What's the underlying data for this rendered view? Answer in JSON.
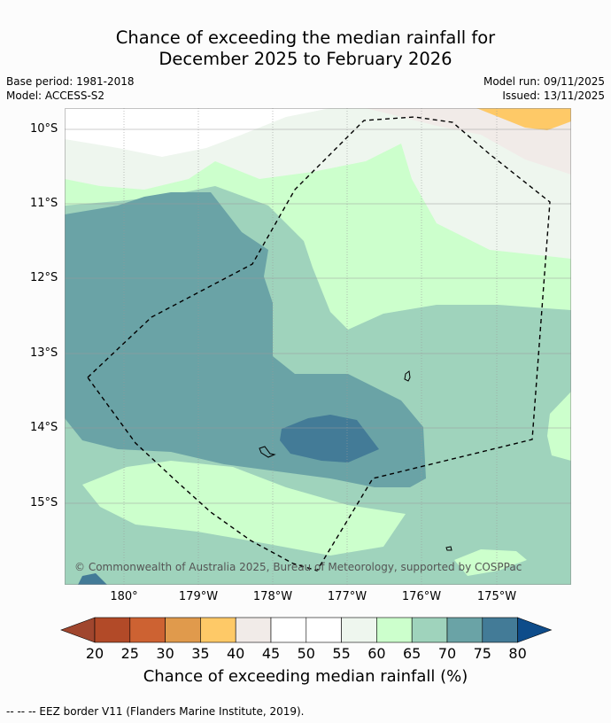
{
  "title": {
    "line1": "Chance of exceeding the median rainfall for",
    "line2": "December 2025 to February 2026"
  },
  "meta": {
    "base_period": "Base period: 1981-2018",
    "model": "Model: ACCESS-S2",
    "model_run": "Model run: 09/11/2025",
    "issued": "Issued: 13/11/2025"
  },
  "map": {
    "lat_labels": [
      "10°S",
      "11°S",
      "12°S",
      "13°S",
      "14°S",
      "15°S"
    ],
    "lon_labels": [
      "180°",
      "179°W",
      "178°W",
      "177°W",
      "176°W",
      "175°W"
    ],
    "copyright": "© Commonwealth of Australia 2025, Bureau of Meteorology, supported by COSPPac",
    "icons": [
      "island-outline-icon",
      "eez-border-icon"
    ]
  },
  "colorbar": {
    "ticks": [
      "20",
      "25",
      "30",
      "35",
      "40",
      "45",
      "50",
      "55",
      "60",
      "65",
      "70",
      "75",
      "80"
    ],
    "colors": [
      "#a0462e",
      "#b24a28",
      "#cd6232",
      "#e09a4c",
      "#fec967",
      "#f1ebe8",
      "#ffffff",
      "#ffffff",
      "#eef6ee",
      "#ccffcc",
      "#9fd3bc",
      "#6aa3a6",
      "#437b97",
      "#0e4c8a"
    ],
    "label": "Chance of exceeding median rainfall (%)"
  },
  "footer": {
    "legend_line": "--  --  -- EEZ border V11 (Flanders Marine Institute, 2019)."
  }
}
